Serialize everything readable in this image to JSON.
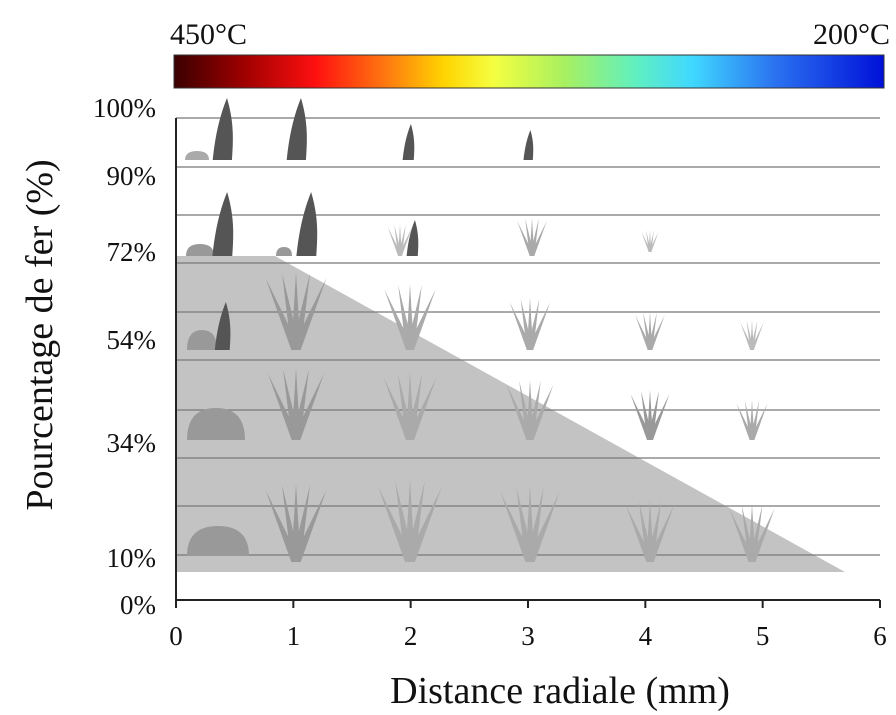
{
  "colorbar": {
    "left_label": "450°C",
    "right_label": "200°C"
  },
  "y_axis": {
    "title": "Pourcentage de fer (%)",
    "labels": [
      "100%",
      "90%",
      "72%",
      "54%",
      "34%",
      "10%",
      "0%"
    ]
  },
  "x_axis": {
    "title": "Distance radiale (mm)",
    "labels": [
      "0",
      "1",
      "2",
      "3",
      "4",
      "5",
      "6"
    ]
  }
}
